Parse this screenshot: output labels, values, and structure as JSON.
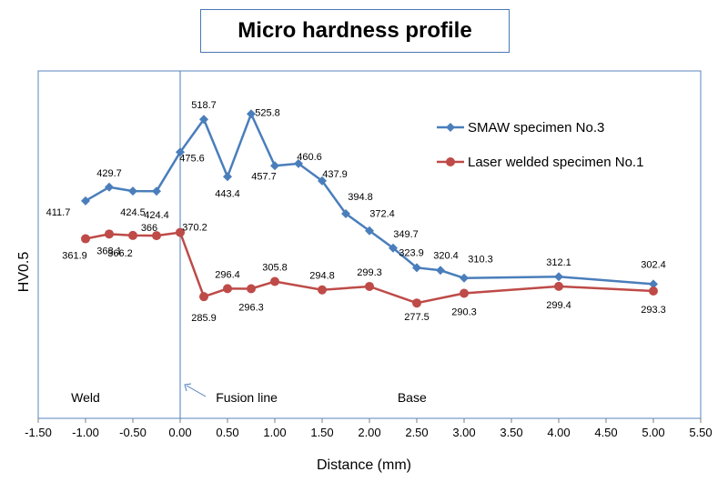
{
  "chart_data": {
    "type": "line",
    "title": "Micro hardness profile",
    "xlabel": "Distance (mm)",
    "ylabel": "HV0.5",
    "xlim": [
      -1.5,
      5.5
    ],
    "ylim": [
      150,
      550
    ],
    "xticks": [
      "-1.50",
      "-1.00",
      "-0.50",
      "0.00",
      "0.50",
      "1.00",
      "1.50",
      "2.00",
      "2.50",
      "3.00",
      "3.50",
      "4.00",
      "4.50",
      "5.00",
      "5.50"
    ],
    "grid": false,
    "legend_position": "right",
    "series": [
      {
        "name": "SMAW specimen No.3",
        "color": "#4a7ebb",
        "marker": "diamond",
        "x": [
          -1.0,
          -0.75,
          -0.5,
          -0.25,
          0.0,
          0.25,
          0.5,
          0.75,
          1.0,
          1.25,
          1.5,
          1.75,
          2.0,
          2.25,
          2.5,
          2.75,
          3.0,
          4.0,
          5.0
        ],
        "y": [
          411.7,
          429.7,
          424.5,
          424.4,
          475.6,
          518.7,
          443.4,
          525.8,
          457.7,
          460.6,
          437.9,
          394.8,
          372.4,
          349.7,
          323.9,
          320.4,
          310.3,
          312.1,
          302.4
        ],
        "labels": [
          "411.7",
          "429.7",
          "424.5",
          "424.4",
          "475.6",
          "518.7",
          "443.4",
          "525.8",
          "457.7",
          "460.6",
          "437.9",
          "394.8",
          "372.4",
          "349.7",
          "323.9",
          "320.4",
          "310.3",
          "312.1",
          "302.4"
        ]
      },
      {
        "name": "Laser welded specimen No.1",
        "color": "#be4b48",
        "marker": "circle",
        "x": [
          -1.0,
          -0.75,
          -0.5,
          -0.25,
          0.0,
          0.25,
          0.5,
          0.75,
          1.0,
          1.5,
          2.0,
          2.5,
          3.0,
          4.0,
          5.0
        ],
        "y": [
          361.9,
          368.1,
          366.2,
          366,
          370.2,
          285.9,
          296.4,
          296.3,
          305.8,
          294.8,
          299.3,
          277.5,
          290.3,
          299.4,
          293.3
        ],
        "labels": [
          "361.9",
          "368.1",
          "366.2",
          "366",
          "370.2",
          "285.9",
          "296.4",
          "296.3",
          "305.8",
          "294.8",
          "299.3",
          "277.5",
          "290.3",
          "299.4",
          "293.3"
        ]
      }
    ],
    "annotations": [
      {
        "text": "Weld",
        "x": -1.0
      },
      {
        "text": "Fusion line",
        "x": 0.3
      },
      {
        "text": "Base",
        "x": 2.45
      }
    ],
    "reference_line_x": 0.0
  }
}
